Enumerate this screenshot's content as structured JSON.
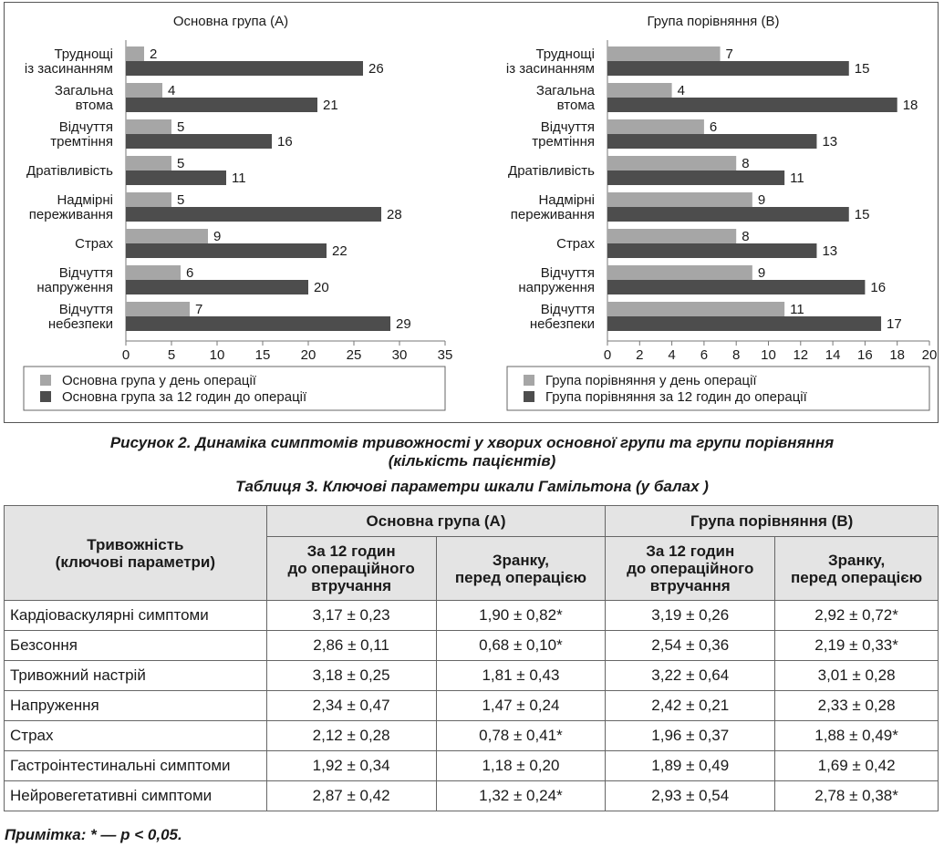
{
  "chart_data": [
    {
      "type": "bar",
      "orientation": "horizontal",
      "title": "Основна група (А)",
      "categories": [
        [
          "Труднощі",
          "із засинанням"
        ],
        [
          "Загальна",
          "втома"
        ],
        [
          "Відчуття",
          "тремтіння"
        ],
        [
          "Дратівливість"
        ],
        [
          "Надмірні",
          "переживання"
        ],
        [
          "Страх"
        ],
        [
          "Відчуття",
          "напруження"
        ],
        [
          "Відчуття",
          "небезпеки"
        ]
      ],
      "series": [
        {
          "name": "Основна група у день операції",
          "color": "#a6a6a6",
          "values": [
            2,
            4,
            5,
            5,
            5,
            9,
            6,
            7
          ]
        },
        {
          "name": "Основна група за 12 годин до операції",
          "color": "#4d4d4d",
          "values": [
            26,
            21,
            16,
            11,
            28,
            22,
            20,
            29
          ]
        }
      ],
      "xlim": [
        0,
        35
      ],
      "xticks": [
        0,
        5,
        10,
        15,
        20,
        25,
        30,
        35
      ],
      "grid": false,
      "legend": "bottom"
    },
    {
      "type": "bar",
      "orientation": "horizontal",
      "title": "Група порівняння (В)",
      "categories": [
        [
          "Труднощі",
          "із засинанням"
        ],
        [
          "Загальна",
          "втома"
        ],
        [
          "Відчуття",
          "тремтіння"
        ],
        [
          "Дратівливість"
        ],
        [
          "Надмірні",
          "переживання"
        ],
        [
          "Страх"
        ],
        [
          "Відчуття",
          "напруження"
        ],
        [
          "Відчуття",
          "небезпеки"
        ]
      ],
      "series": [
        {
          "name": "Група порівняння у день операції",
          "color": "#a6a6a6",
          "values": [
            7,
            4,
            6,
            8,
            9,
            8,
            9,
            11
          ]
        },
        {
          "name": "Група порівняння за 12 годин до операції",
          "color": "#4d4d4d",
          "values": [
            15,
            18,
            13,
            11,
            15,
            13,
            16,
            17
          ]
        }
      ],
      "xlim": [
        0,
        20
      ],
      "xticks": [
        0,
        2,
        4,
        6,
        8,
        10,
        12,
        14,
        16,
        18,
        20
      ],
      "grid": false,
      "legend": "bottom"
    }
  ],
  "captions": {
    "figure_prefix": "Рисунок 2.",
    "figure_text_line1": "Динаміка симптомів тривожності у хворих основної групи та групи порівняння",
    "figure_text_line2": "(кількість пацієнтів)",
    "table_prefix": "Таблиця 3.",
    "table_text": "Ключові параметри шкали Гамільтона (у балах )"
  },
  "table": {
    "param_header_line1": "Тривожність",
    "param_header_line2": "(ключові параметри)",
    "group_a": "Основна група (А)",
    "group_b": "Група порівняння (В)",
    "col_12h_line1": "За 12 годин",
    "col_12h_line2": "до операційного",
    "col_12h_line3": "втручання",
    "col_morning_line1": "Зранку,",
    "col_morning_line2": "перед операцією",
    "rows": [
      {
        "param": "Кардіоваскулярні симптоми",
        "a_12h": "3,17 ± 0,23",
        "a_morning": "1,90 ± 0,82*",
        "b_12h": "3,19 ± 0,26",
        "b_morning": "2,92 ± 0,72*"
      },
      {
        "param": "Безсоння",
        "a_12h": "2,86 ± 0,11",
        "a_morning": "0,68 ± 0,10*",
        "b_12h": "2,54 ± 0,36",
        "b_morning": "2,19 ± 0,33*"
      },
      {
        "param": "Тривожний настрій",
        "a_12h": "3,18 ± 0,25",
        "a_morning": "1,81 ± 0,43",
        "b_12h": "3,22 ± 0,64",
        "b_morning": "3,01 ± 0,28"
      },
      {
        "param": "Напруження",
        "a_12h": "2,34 ± 0,47",
        "a_morning": "1,47 ± 0,24",
        "b_12h": "2,42 ± 0,21",
        "b_morning": "2,33 ± 0,28"
      },
      {
        "param": "Страх",
        "a_12h": "2,12 ± 0,28",
        "a_morning": "0,78 ± 0,41*",
        "b_12h": "1,96 ± 0,37",
        "b_morning": "1,88 ± 0,49*"
      },
      {
        "param": "Гастроінтестинальні симптоми",
        "a_12h": "1,92 ± 0,34",
        "a_morning": "1,18 ± 0,20",
        "b_12h": "1,89 ± 0,49",
        "b_morning": "1,69 ± 0,42"
      },
      {
        "param": "Нейровегетативні симптоми",
        "a_12h": "2,87 ± 0,42",
        "a_morning": "1,32 ± 0,24*",
        "b_12h": "2,93 ± 0,54",
        "b_morning": "2,78 ± 0,38*"
      }
    ]
  },
  "note": "Примітка: * — p < 0,05."
}
